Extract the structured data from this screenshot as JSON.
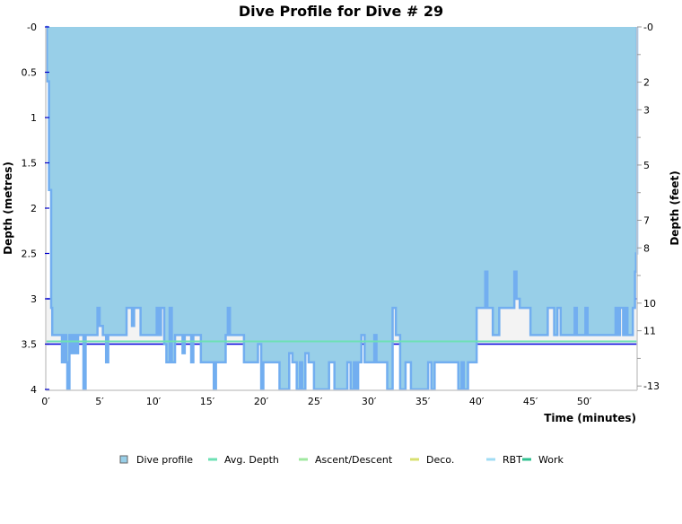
{
  "chart_data": {
    "type": "area",
    "title": "Dive Profile for Dive # 29",
    "xlabel": "Time (minutes)",
    "ylabel": "Depth (metres)",
    "ylabel_right": "Depth (feet)",
    "xlim": [
      0,
      55
    ],
    "ylim": [
      0,
      4
    ],
    "y_inverted": true,
    "x_ticks": [
      "0′",
      "5′",
      "10′",
      "15′",
      "20′",
      "25′",
      "30′",
      "35′",
      "40′",
      "45′",
      "50′"
    ],
    "y_ticks": [
      "-0",
      "0.5",
      "1",
      "1.5",
      "2",
      "2.5",
      "3",
      "3.5",
      "4"
    ],
    "y_right_ticks": [
      "-0",
      "2",
      "3",
      "5",
      "7",
      "8",
      "10",
      "11",
      "-13"
    ],
    "grid": false,
    "legend_position": "bottom",
    "legend": [
      "Dive profile",
      "Avg. Depth",
      "Ascent/Descent",
      "Deco.",
      "RBT",
      "Work"
    ],
    "colors": {
      "profile_fill": "#98cfe8",
      "profile_line": "#72aef0",
      "avg_depth": "#6ee0b4",
      "band": "#f3f3f3",
      "reference_line": "#0000dd",
      "ascent": "#a0e8a0",
      "deco": "#d8e070",
      "rbt": "#a0dcf4",
      "work": "#30c090"
    },
    "avg_depth": 3.47,
    "band": [
      3.0,
      3.5
    ],
    "series": [
      {
        "name": "Dive profile",
        "x": [
          0,
          0.1,
          0.3,
          0.5,
          0.6,
          1.3,
          1.5,
          1.7,
          1.9,
          2.0,
          2.2,
          2.4,
          2.6,
          2.8,
          3.0,
          3.4,
          3.5,
          3.7,
          4.6,
          4.8,
          5.0,
          5.3,
          5.6,
          5.8,
          7.2,
          7.5,
          7.9,
          8.0,
          8.2,
          8.5,
          8.8,
          10.0,
          10.3,
          10.5,
          10.7,
          11.0,
          11.2,
          11.5,
          11.7,
          12.0,
          12.5,
          12.7,
          12.9,
          13.3,
          13.5,
          13.7,
          14.2,
          14.4,
          15.3,
          15.6,
          15.8,
          16.3,
          16.7,
          16.9,
          17.1,
          18.2,
          18.4,
          19.5,
          19.7,
          20.0,
          20.2,
          21.5,
          21.7,
          22.3,
          22.6,
          22.9,
          23.3,
          23.6,
          23.8,
          24.1,
          24.4,
          24.9,
          25.8,
          26.3,
          26.6,
          26.8,
          27.8,
          28.0,
          28.3,
          28.6,
          28.8,
          29.0,
          29.3,
          29.6,
          30.3,
          30.5,
          30.7,
          31.3,
          31.7,
          32.2,
          32.5,
          32.9,
          33.4,
          33.9,
          35.3,
          35.5,
          35.8,
          36.1,
          38.0,
          38.3,
          38.6,
          38.8,
          39.2,
          39.7,
          40.0,
          40.5,
          40.8,
          41.0,
          41.3,
          41.5,
          41.8,
          42.1,
          43.3,
          43.5,
          43.7,
          44.0,
          44.7,
          45.0,
          46.3,
          46.6,
          47.0,
          47.2,
          47.5,
          47.8,
          48.8,
          49.1,
          49.3,
          50.1,
          50.3,
          52.7,
          52.9,
          53.1,
          53.3,
          53.6,
          53.8,
          54.0,
          54.3,
          54.5,
          54.7,
          54.8,
          54.9
        ],
        "y": [
          0,
          0.6,
          1.8,
          3.1,
          3.4,
          3.4,
          3.7,
          3.4,
          3.7,
          4.0,
          3.4,
          3.6,
          3.4,
          3.6,
          3.4,
          3.4,
          4.0,
          3.4,
          3.4,
          3.1,
          3.3,
          3.4,
          3.7,
          3.4,
          3.4,
          3.1,
          3.1,
          3.3,
          3.1,
          3.1,
          3.4,
          3.4,
          3.1,
          3.4,
          3.1,
          3.5,
          3.7,
          3.1,
          3.7,
          3.4,
          3.4,
          3.6,
          3.4,
          3.4,
          3.7,
          3.4,
          3.4,
          3.7,
          3.7,
          4.0,
          3.7,
          3.7,
          3.4,
          3.1,
          3.4,
          3.4,
          3.7,
          3.7,
          3.5,
          4.0,
          3.7,
          3.7,
          4.0,
          4.0,
          3.6,
          3.7,
          4.0,
          3.7,
          4.0,
          3.6,
          3.7,
          4.0,
          4.0,
          3.7,
          3.7,
          4.0,
          4.0,
          3.7,
          4.0,
          3.7,
          4.0,
          3.7,
          3.4,
          3.7,
          3.7,
          3.4,
          3.7,
          3.7,
          4.0,
          3.1,
          3.4,
          4.0,
          3.7,
          4.0,
          4.0,
          3.7,
          4.0,
          3.7,
          3.7,
          4.0,
          3.7,
          4.0,
          3.7,
          3.7,
          3.1,
          3.1,
          2.7,
          3.1,
          3.1,
          3.4,
          3.4,
          3.1,
          3.1,
          2.7,
          3.0,
          3.1,
          3.1,
          3.4,
          3.4,
          3.1,
          3.1,
          3.4,
          3.1,
          3.4,
          3.4,
          3.1,
          3.4,
          3.1,
          3.4,
          3.4,
          3.1,
          3.4,
          3.1,
          3.4,
          3.1,
          3.4,
          3.4,
          3.1,
          2.7,
          2.5,
          0
        ]
      }
    ]
  }
}
